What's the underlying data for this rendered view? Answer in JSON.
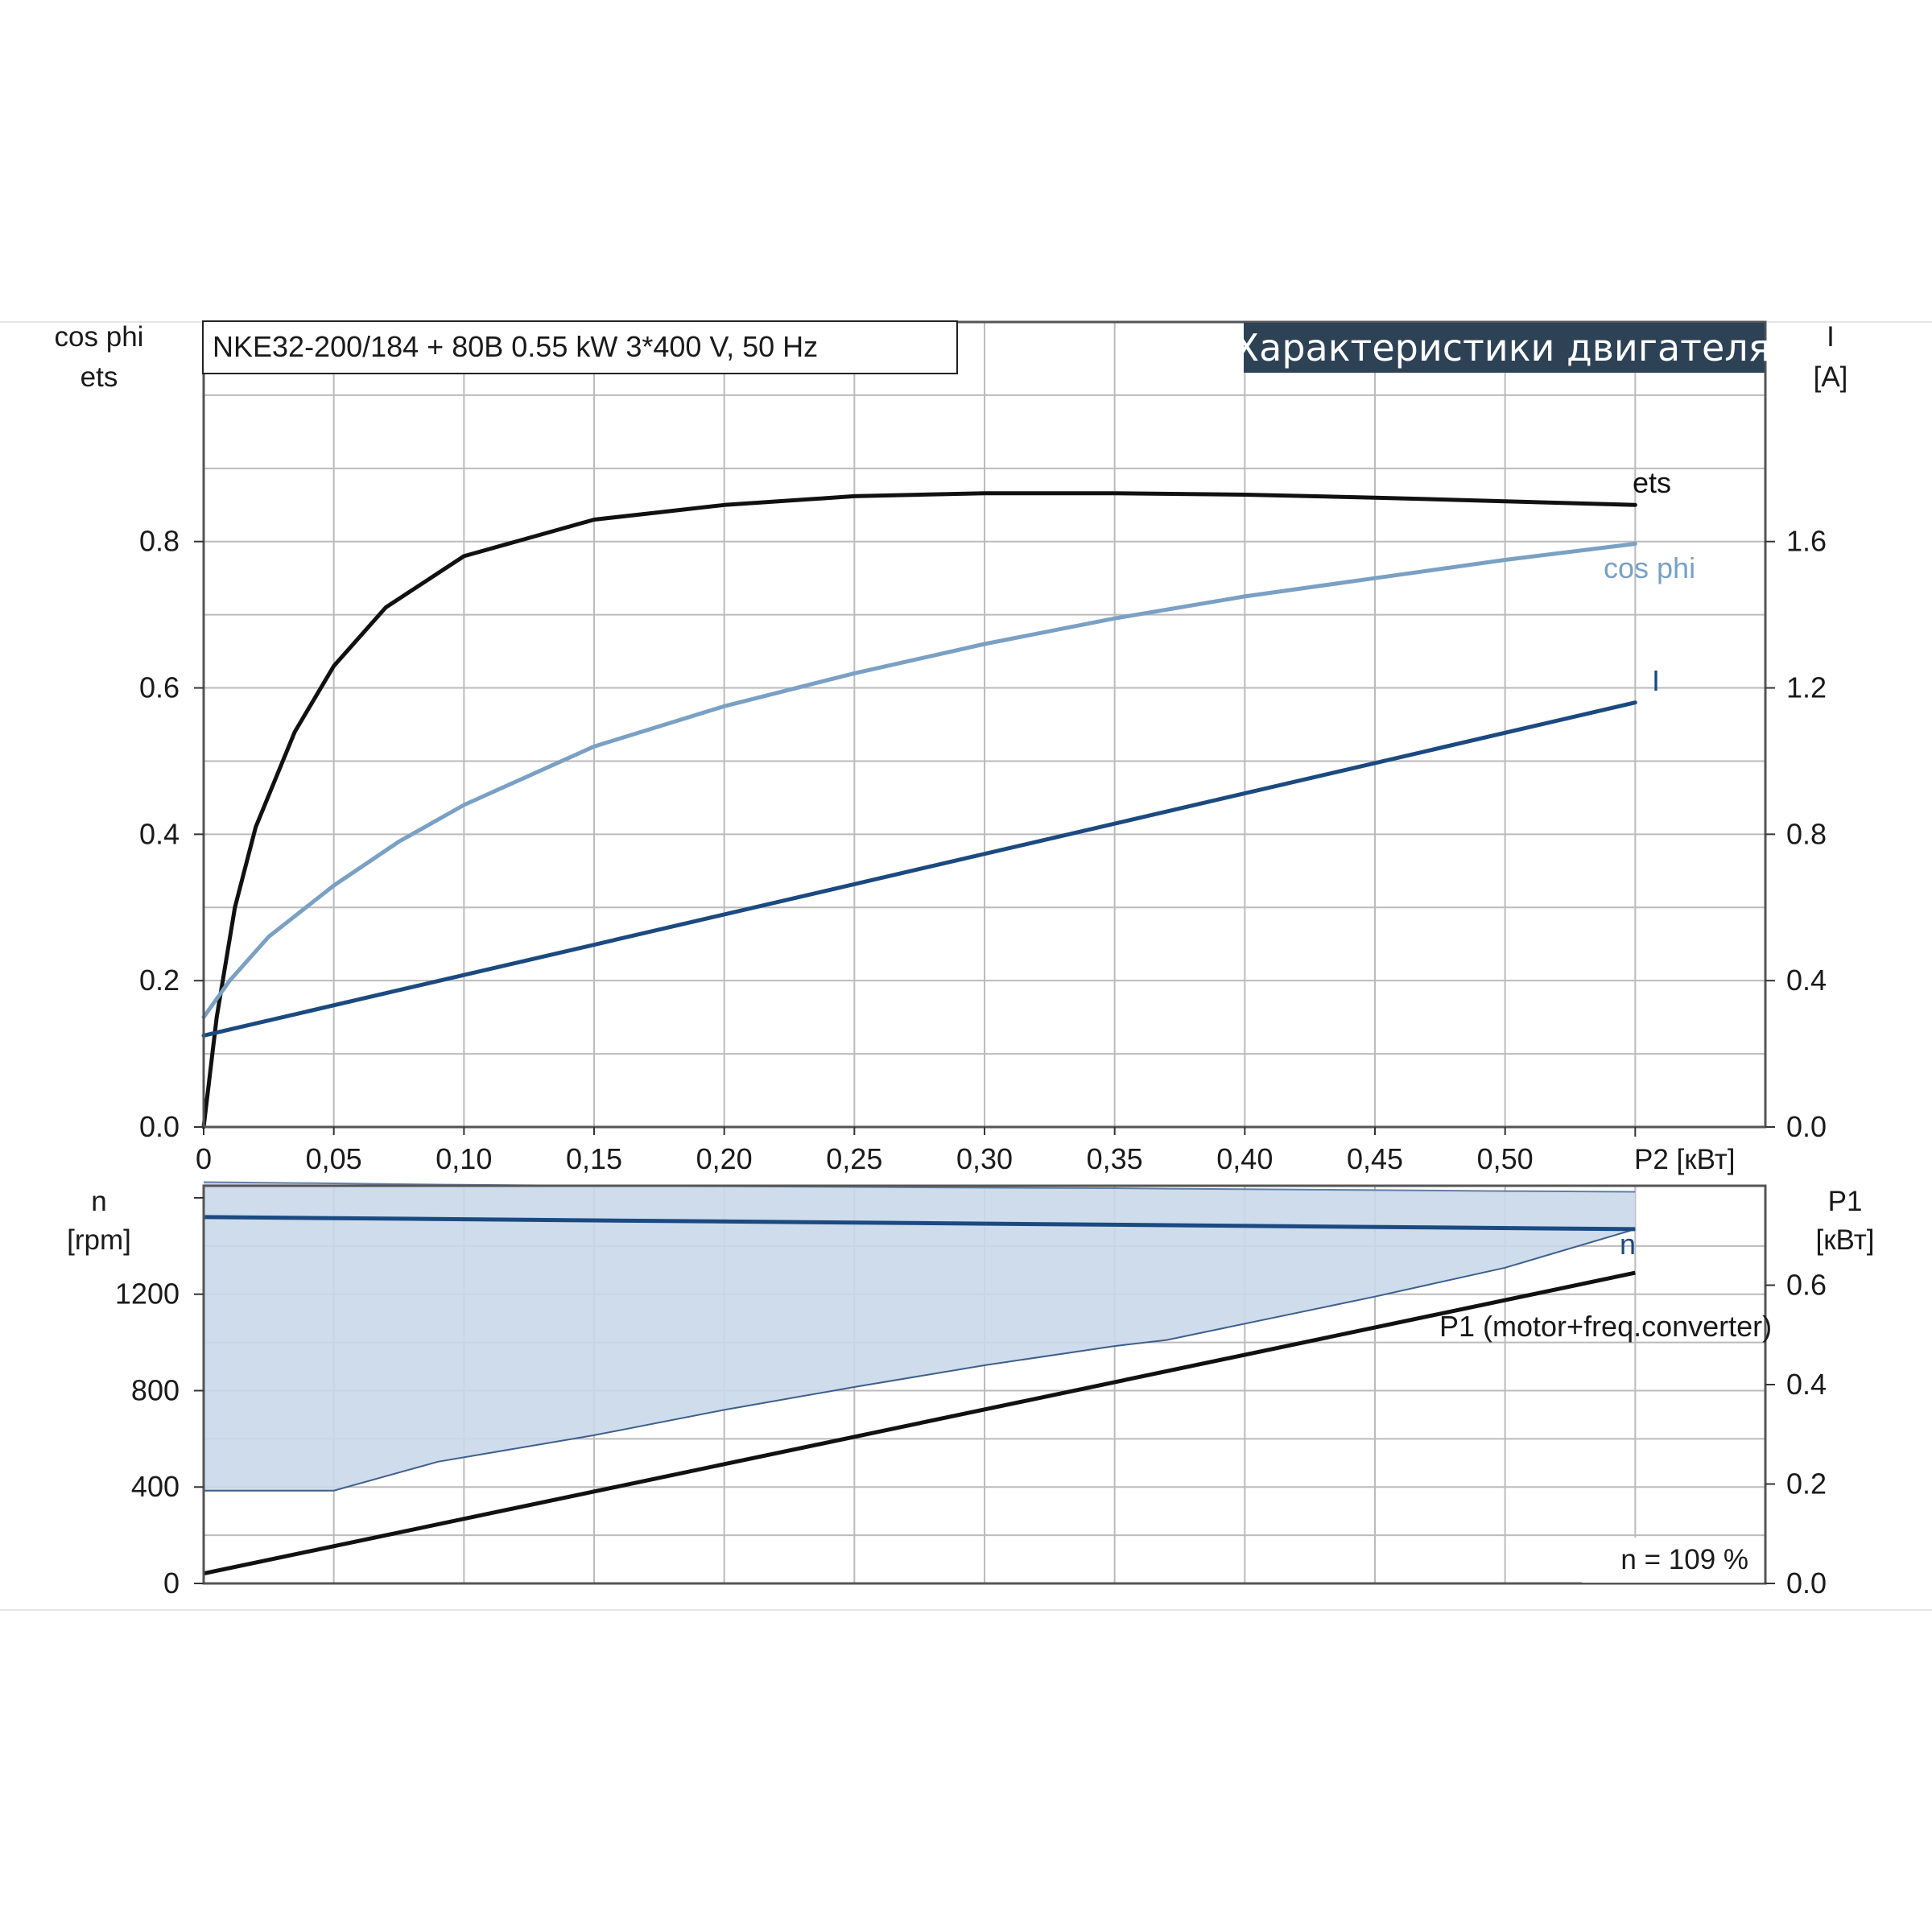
{
  "model_label": "NKE32-200/184 + 80B   0.55 kW   3*400 V, 50 Hz",
  "banner": "Характеристики двигателя",
  "speed_note": "n = 109 %",
  "colors": {
    "ets": "#111111",
    "cos_phi": "#7aa0c4",
    "current": "#1b4a80",
    "speed": "#1b4a80",
    "speed_band": "#c9d8ea",
    "p1": "#111111",
    "banner_bg": "#2e4256",
    "grid": "#bbbbbb"
  },
  "chart_data": [
    {
      "type": "line",
      "xlabel": "P2 [кВт]",
      "xlim": [
        0,
        0.6
      ],
      "x_ticks": [
        "0",
        "0,05",
        "0,10",
        "0,15",
        "0,20",
        "0,25",
        "0,30",
        "0,35",
        "0,40",
        "0,45",
        "0,50"
      ],
      "y_left_label": [
        "cos phi",
        "ets"
      ],
      "y_left_lim": [
        0,
        1.1
      ],
      "y_left_ticks": [
        "0.0",
        "0.2",
        "0.4",
        "0.6",
        "0.8"
      ],
      "y_right_label": [
        "I",
        "[A]"
      ],
      "y_right_lim": [
        0,
        2.2
      ],
      "y_right_ticks": [
        "0.0",
        "0.4",
        "0.8",
        "1.2",
        "1.6"
      ],
      "grid": true,
      "series": [
        {
          "name": "ets",
          "axis": "left",
          "x": [
            0,
            0.005,
            0.012,
            0.02,
            0.035,
            0.05,
            0.07,
            0.1,
            0.15,
            0.2,
            0.25,
            0.3,
            0.35,
            0.4,
            0.45,
            0.5,
            0.55
          ],
          "y": [
            0,
            0.15,
            0.3,
            0.41,
            0.54,
            0.63,
            0.71,
            0.78,
            0.83,
            0.85,
            0.862,
            0.866,
            0.866,
            0.864,
            0.86,
            0.855,
            0.85
          ]
        },
        {
          "name": "cos phi",
          "axis": "left",
          "x": [
            0,
            0.01,
            0.025,
            0.05,
            0.075,
            0.1,
            0.15,
            0.2,
            0.25,
            0.3,
            0.35,
            0.4,
            0.45,
            0.5,
            0.55
          ],
          "y": [
            0.15,
            0.2,
            0.26,
            0.33,
            0.39,
            0.44,
            0.52,
            0.575,
            0.62,
            0.66,
            0.695,
            0.725,
            0.75,
            0.775,
            0.797
          ]
        },
        {
          "name": "I",
          "axis": "right",
          "x": [
            0,
            0.55
          ],
          "y": [
            0.25,
            1.16
          ]
        }
      ]
    },
    {
      "type": "area",
      "xlim": [
        0,
        0.6
      ],
      "y_left_label": [
        "n",
        "[rpm]"
      ],
      "y_left_lim": [
        0,
        1650
      ],
      "y_left_ticks": [
        "0",
        "400",
        "800",
        "1200"
      ],
      "y_right_label": [
        "P1",
        "[кВт]"
      ],
      "y_right_lim": [
        0,
        0.8
      ],
      "y_right_ticks": [
        "0.0",
        "0.2",
        "0.4",
        "0.6"
      ],
      "grid": true,
      "series": [
        {
          "name": "n",
          "axis": "left",
          "x": [
            0,
            0.55
          ],
          "y": [
            1520,
            1470
          ]
        },
        {
          "name": "P1 (motor+freq.converter)",
          "axis": "right",
          "x": [
            0,
            0.55
          ],
          "y": [
            0.02,
            0.625
          ]
        },
        {
          "band": "speed range",
          "axis": "left",
          "x": [
            0,
            0.05,
            0.09,
            0.15,
            0.2,
            0.25,
            0.3,
            0.35,
            0.37,
            0.45,
            0.5,
            0.55
          ],
          "upper": [
            1665,
            1660,
            1655,
            1650,
            1648,
            1645,
            1642,
            1640,
            1638,
            1632,
            1628,
            1625
          ],
          "lower": [
            385,
            385,
            505,
            615,
            720,
            815,
            905,
            985,
            1010,
            1190,
            1310,
            1470
          ]
        }
      ]
    }
  ]
}
